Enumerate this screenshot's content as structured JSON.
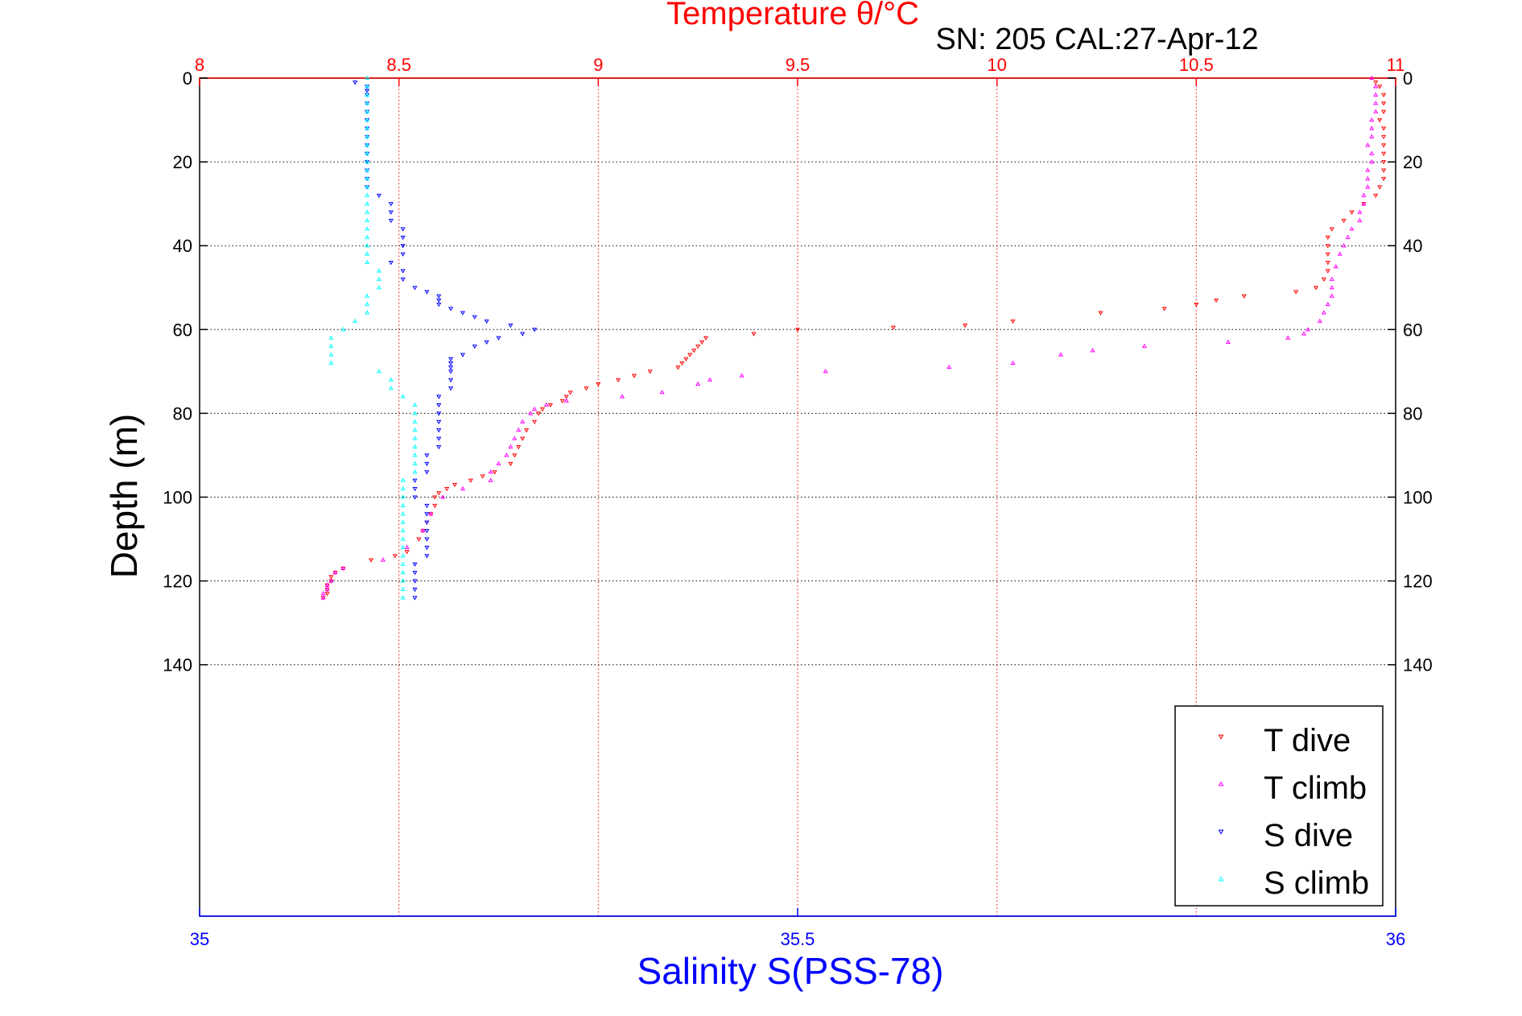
{
  "chart_data": {
    "type": "scatter",
    "title": "Temperature θ/°C",
    "subtitle": "SN: 205  CAL:27-Apr-12",
    "ylabel": "Depth (m)",
    "xlabel": "Salinity S(PSS-78)",
    "y_ticks": [
      "0",
      "20",
      "40",
      "60",
      "80",
      "100",
      "120",
      "140"
    ],
    "y_tick_values": [
      0,
      20,
      40,
      60,
      80,
      100,
      120,
      140
    ],
    "ylim": [
      0,
      200
    ],
    "y_reversed": true,
    "x_top_ticks": [
      "8",
      "8.5",
      "9",
      "9.5",
      "10",
      "10.5",
      "11"
    ],
    "x_top_tick_values": [
      8,
      8.5,
      9,
      9.5,
      10,
      10.5,
      11
    ],
    "x_top_lim": [
      8,
      11
    ],
    "x_bottom_ticks": [
      "35",
      "35.5",
      "36"
    ],
    "x_bottom_tick_values": [
      35,
      35.5,
      36
    ],
    "x_bottom_lim": [
      35,
      36
    ],
    "grid": true,
    "legend_position": "bottom-right",
    "colors": {
      "title": "#ff0000",
      "top_axis": "#ff0000",
      "bottom_axis": "#0000ff",
      "xlabel": "#0000ff",
      "grid_vertical": "#ff0000",
      "grid_horizontal": "#000000"
    },
    "series": [
      {
        "name": "T dive",
        "axis": "top",
        "marker": "triangle-down",
        "color": "#ff0000",
        "points": [
          [
            10.95,
            1
          ],
          [
            10.96,
            2
          ],
          [
            10.97,
            4
          ],
          [
            10.97,
            6
          ],
          [
            10.97,
            8
          ],
          [
            10.96,
            10
          ],
          [
            10.97,
            12
          ],
          [
            10.97,
            14
          ],
          [
            10.97,
            16
          ],
          [
            10.97,
            18
          ],
          [
            10.97,
            20
          ],
          [
            10.97,
            22
          ],
          [
            10.97,
            24
          ],
          [
            10.96,
            26
          ],
          [
            10.95,
            28
          ],
          [
            10.92,
            30
          ],
          [
            10.89,
            32
          ],
          [
            10.87,
            34
          ],
          [
            10.84,
            36
          ],
          [
            10.83,
            38
          ],
          [
            10.83,
            40
          ],
          [
            10.83,
            42
          ],
          [
            10.83,
            44
          ],
          [
            10.83,
            46
          ],
          [
            10.82,
            48
          ],
          [
            10.8,
            50
          ],
          [
            10.75,
            51
          ],
          [
            10.62,
            52
          ],
          [
            10.55,
            53
          ],
          [
            10.5,
            54
          ],
          [
            10.42,
            55
          ],
          [
            10.26,
            56
          ],
          [
            10.04,
            58
          ],
          [
            9.92,
            59
          ],
          [
            9.74,
            59.5
          ],
          [
            9.5,
            60
          ],
          [
            9.39,
            61
          ],
          [
            9.27,
            62
          ],
          [
            9.26,
            63
          ],
          [
            9.25,
            64
          ],
          [
            9.24,
            65
          ],
          [
            9.23,
            66
          ],
          [
            9.22,
            67
          ],
          [
            9.21,
            68
          ],
          [
            9.2,
            69
          ],
          [
            9.13,
            70
          ],
          [
            9.09,
            71
          ],
          [
            9.05,
            72
          ],
          [
            9.0,
            73
          ],
          [
            8.97,
            74
          ],
          [
            8.93,
            75
          ],
          [
            8.92,
            76
          ],
          [
            8.91,
            77
          ],
          [
            8.88,
            78
          ],
          [
            8.86,
            79
          ],
          [
            8.85,
            80
          ],
          [
            8.84,
            82
          ],
          [
            8.82,
            84
          ],
          [
            8.81,
            86
          ],
          [
            8.8,
            88
          ],
          [
            8.79,
            90
          ],
          [
            8.78,
            92
          ],
          [
            8.74,
            94
          ],
          [
            8.71,
            95
          ],
          [
            8.68,
            96
          ],
          [
            8.64,
            97
          ],
          [
            8.62,
            98
          ],
          [
            8.6,
            99
          ],
          [
            8.59,
            100
          ],
          [
            8.59,
            102
          ],
          [
            8.58,
            104
          ],
          [
            8.57,
            106
          ],
          [
            8.56,
            108
          ],
          [
            8.55,
            110
          ],
          [
            8.52,
            113
          ],
          [
            8.49,
            114
          ],
          [
            8.43,
            115
          ],
          [
            8.36,
            117
          ],
          [
            8.34,
            118
          ],
          [
            8.33,
            119
          ],
          [
            8.33,
            120
          ],
          [
            8.32,
            121
          ],
          [
            8.32,
            122
          ],
          [
            8.32,
            123
          ],
          [
            8.31,
            124
          ]
        ]
      },
      {
        "name": "T climb",
        "axis": "top",
        "marker": "triangle-up",
        "color": "#ff00ff",
        "points": [
          [
            10.94,
            0
          ],
          [
            10.95,
            2
          ],
          [
            10.95,
            4
          ],
          [
            10.95,
            6
          ],
          [
            10.95,
            8
          ],
          [
            10.94,
            10
          ],
          [
            10.94,
            12
          ],
          [
            10.94,
            14
          ],
          [
            10.93,
            16
          ],
          [
            10.94,
            18
          ],
          [
            10.94,
            20
          ],
          [
            10.93,
            22
          ],
          [
            10.93,
            24
          ],
          [
            10.93,
            26
          ],
          [
            10.92,
            28
          ],
          [
            10.92,
            30
          ],
          [
            10.91,
            32
          ],
          [
            10.91,
            34
          ],
          [
            10.89,
            36
          ],
          [
            10.88,
            38
          ],
          [
            10.87,
            40
          ],
          [
            10.86,
            42
          ],
          [
            10.85,
            45
          ],
          [
            10.84,
            48
          ],
          [
            10.84,
            50
          ],
          [
            10.84,
            52
          ],
          [
            10.83,
            54
          ],
          [
            10.82,
            56
          ],
          [
            10.81,
            58
          ],
          [
            10.78,
            60
          ],
          [
            10.77,
            61
          ],
          [
            10.73,
            62
          ],
          [
            10.58,
            63
          ],
          [
            10.37,
            64
          ],
          [
            10.24,
            65
          ],
          [
            10.16,
            66
          ],
          [
            10.04,
            68
          ],
          [
            9.88,
            69
          ],
          [
            9.57,
            70
          ],
          [
            9.36,
            71
          ],
          [
            9.28,
            72
          ],
          [
            9.25,
            73
          ],
          [
            9.16,
            75
          ],
          [
            9.06,
            76
          ],
          [
            8.92,
            77
          ],
          [
            8.87,
            78
          ],
          [
            8.84,
            79
          ],
          [
            8.83,
            80
          ],
          [
            8.81,
            82
          ],
          [
            8.8,
            84
          ],
          [
            8.79,
            86
          ],
          [
            8.78,
            88
          ],
          [
            8.77,
            90
          ],
          [
            8.75,
            92
          ],
          [
            8.73,
            94
          ],
          [
            8.73,
            96
          ],
          [
            8.66,
            98
          ],
          [
            8.61,
            100
          ],
          [
            8.58,
            104
          ],
          [
            8.56,
            108
          ],
          [
            8.52,
            112
          ],
          [
            8.46,
            115
          ],
          [
            8.36,
            117
          ],
          [
            8.34,
            118
          ],
          [
            8.33,
            120
          ],
          [
            8.32,
            121
          ],
          [
            8.32,
            122
          ],
          [
            8.31,
            123
          ],
          [
            8.31,
            124
          ]
        ]
      },
      {
        "name": "S dive",
        "axis": "bottom",
        "marker": "triangle-down",
        "color": "#0000ff",
        "points": [
          [
            35.13,
            1
          ],
          [
            35.14,
            2
          ],
          [
            35.14,
            3
          ],
          [
            35.14,
            4
          ],
          [
            35.14,
            6
          ],
          [
            35.14,
            8
          ],
          [
            35.14,
            10
          ],
          [
            35.14,
            12
          ],
          [
            35.14,
            14
          ],
          [
            35.14,
            16
          ],
          [
            35.14,
            18
          ],
          [
            35.14,
            20
          ],
          [
            35.14,
            22
          ],
          [
            35.14,
            24
          ],
          [
            35.14,
            26
          ],
          [
            35.15,
            28
          ],
          [
            35.16,
            30
          ],
          [
            35.16,
            32
          ],
          [
            35.16,
            34
          ],
          [
            35.17,
            36
          ],
          [
            35.17,
            38
          ],
          [
            35.17,
            40
          ],
          [
            35.17,
            42
          ],
          [
            35.16,
            44
          ],
          [
            35.17,
            46
          ],
          [
            35.17,
            48
          ],
          [
            35.18,
            50
          ],
          [
            35.19,
            51
          ],
          [
            35.2,
            52
          ],
          [
            35.2,
            53
          ],
          [
            35.2,
            54
          ],
          [
            35.21,
            55
          ],
          [
            35.22,
            56
          ],
          [
            35.23,
            57
          ],
          [
            35.24,
            58
          ],
          [
            35.26,
            59
          ],
          [
            35.28,
            60
          ],
          [
            35.27,
            61
          ],
          [
            35.25,
            62
          ],
          [
            35.24,
            63
          ],
          [
            35.23,
            64
          ],
          [
            35.22,
            66
          ],
          [
            35.21,
            67
          ],
          [
            35.21,
            68
          ],
          [
            35.21,
            69
          ],
          [
            35.21,
            70
          ],
          [
            35.21,
            72
          ],
          [
            35.21,
            74
          ],
          [
            35.2,
            76
          ],
          [
            35.2,
            78
          ],
          [
            35.2,
            80
          ],
          [
            35.2,
            82
          ],
          [
            35.2,
            84
          ],
          [
            35.2,
            86
          ],
          [
            35.2,
            88
          ],
          [
            35.19,
            90
          ],
          [
            35.19,
            92
          ],
          [
            35.19,
            94
          ],
          [
            35.18,
            96
          ],
          [
            35.18,
            98
          ],
          [
            35.18,
            100
          ],
          [
            35.19,
            102
          ],
          [
            35.19,
            104
          ],
          [
            35.19,
            106
          ],
          [
            35.19,
            108
          ],
          [
            35.19,
            110
          ],
          [
            35.19,
            112
          ],
          [
            35.19,
            114
          ],
          [
            35.18,
            116
          ],
          [
            35.18,
            118
          ],
          [
            35.18,
            120
          ],
          [
            35.18,
            122
          ],
          [
            35.18,
            124
          ]
        ]
      },
      {
        "name": "S climb",
        "axis": "bottom",
        "marker": "triangle-up",
        "color": "#00ffff",
        "points": [
          [
            35.14,
            0
          ],
          [
            35.14,
            2
          ],
          [
            35.14,
            4
          ],
          [
            35.14,
            6
          ],
          [
            35.14,
            8
          ],
          [
            35.14,
            10
          ],
          [
            35.14,
            12
          ],
          [
            35.14,
            14
          ],
          [
            35.14,
            16
          ],
          [
            35.14,
            18
          ],
          [
            35.14,
            20
          ],
          [
            35.14,
            22
          ],
          [
            35.14,
            24
          ],
          [
            35.14,
            26
          ],
          [
            35.14,
            28
          ],
          [
            35.14,
            30
          ],
          [
            35.14,
            32
          ],
          [
            35.14,
            34
          ],
          [
            35.14,
            36
          ],
          [
            35.14,
            38
          ],
          [
            35.14,
            40
          ],
          [
            35.14,
            42
          ],
          [
            35.14,
            44
          ],
          [
            35.15,
            46
          ],
          [
            35.15,
            48
          ],
          [
            35.15,
            50
          ],
          [
            35.14,
            52
          ],
          [
            35.14,
            54
          ],
          [
            35.14,
            56
          ],
          [
            35.13,
            58
          ],
          [
            35.12,
            60
          ],
          [
            35.11,
            62
          ],
          [
            35.11,
            64
          ],
          [
            35.11,
            66
          ],
          [
            35.11,
            68
          ],
          [
            35.15,
            70
          ],
          [
            35.16,
            72
          ],
          [
            35.16,
            74
          ],
          [
            35.17,
            76
          ],
          [
            35.18,
            78
          ],
          [
            35.18,
            80
          ],
          [
            35.18,
            82
          ],
          [
            35.18,
            84
          ],
          [
            35.18,
            86
          ],
          [
            35.18,
            88
          ],
          [
            35.18,
            90
          ],
          [
            35.18,
            92
          ],
          [
            35.18,
            94
          ],
          [
            35.17,
            96
          ],
          [
            35.17,
            98
          ],
          [
            35.17,
            100
          ],
          [
            35.17,
            102
          ],
          [
            35.17,
            104
          ],
          [
            35.17,
            106
          ],
          [
            35.17,
            108
          ],
          [
            35.17,
            110
          ],
          [
            35.17,
            112
          ],
          [
            35.17,
            114
          ],
          [
            35.17,
            116
          ],
          [
            35.17,
            118
          ],
          [
            35.17,
            120
          ],
          [
            35.17,
            122
          ],
          [
            35.17,
            124
          ]
        ]
      }
    ]
  }
}
